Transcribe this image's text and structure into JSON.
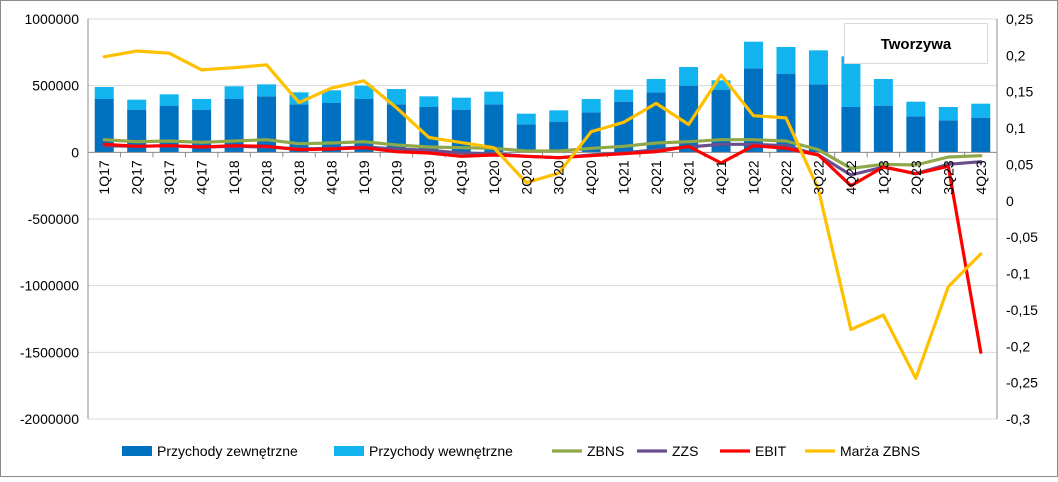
{
  "chart_data": {
    "type": "bar",
    "title": "Tworzywa",
    "categories": [
      "1Q17",
      "2Q17",
      "3Q17",
      "4Q17",
      "1Q18",
      "2Q18",
      "3Q18",
      "4Q18",
      "1Q19",
      "2Q19",
      "3Q19",
      "4Q19",
      "1Q20",
      "2Q20",
      "3Q20",
      "4Q20",
      "1Q21",
      "2Q21",
      "3Q21",
      "4Q21",
      "1Q22",
      "2Q22",
      "3Q22",
      "4Q22",
      "1Q23",
      "2Q23",
      "3Q23",
      "4Q23"
    ],
    "left_axis": {
      "ylim": [
        -2000000,
        1000000
      ],
      "ticks": [
        "1000000",
        "500000",
        "0",
        "-500000",
        "-1000000",
        "-1500000",
        "-2000000"
      ]
    },
    "right_axis": {
      "ylim": [
        -0.3,
        0.25
      ],
      "ticks": [
        "0,25",
        "0,2",
        "0,15",
        "0,1",
        "0,05",
        "0",
        "-0,05",
        "-0,1",
        "-0,15",
        "-0,2",
        "-0,25",
        "-0,3"
      ]
    },
    "series": [
      {
        "name": "Przychody zewnętrzne",
        "kind": "stacked-bar",
        "axis": "left",
        "color": "#0070C0",
        "values": [
          400000,
          320000,
          350000,
          320000,
          400000,
          420000,
          360000,
          370000,
          400000,
          360000,
          340000,
          320000,
          360000,
          210000,
          230000,
          300000,
          380000,
          450000,
          500000,
          470000,
          630000,
          590000,
          510000,
          340000,
          350000,
          270000,
          240000,
          260000
        ]
      },
      {
        "name": "Przychody wewnętrzne",
        "kind": "stacked-bar",
        "axis": "left",
        "color": "#12B4F0",
        "values": [
          90000,
          75000,
          85000,
          80000,
          95000,
          90000,
          90000,
          95000,
          100000,
          115000,
          80000,
          90000,
          95000,
          80000,
          85000,
          100000,
          90000,
          100000,
          140000,
          70000,
          200000,
          200000,
          255000,
          380000,
          200000,
          110000,
          100000,
          105000
        ]
      },
      {
        "name": "ZBNS",
        "kind": "line",
        "axis": "left",
        "color": "#8EA84A",
        "values": [
          95000,
          80000,
          85000,
          75000,
          85000,
          95000,
          65000,
          70000,
          80000,
          55000,
          40000,
          35000,
          30000,
          10000,
          10000,
          30000,
          45000,
          70000,
          80000,
          95000,
          95000,
          85000,
          20000,
          -120000,
          -90000,
          -95000,
          -35000,
          -25000
        ]
      },
      {
        "name": "ZZS",
        "kind": "line",
        "axis": "left",
        "color": "#6A4F8C",
        "values": [
          50000,
          45000,
          50000,
          40000,
          45000,
          40000,
          25000,
          30000,
          40000,
          25000,
          15000,
          -5000,
          -10000,
          -30000,
          -40000,
          -20000,
          -5000,
          20000,
          40000,
          60000,
          60000,
          50000,
          -20000,
          -170000,
          -110000,
          -160000,
          -90000,
          -70000
        ]
      },
      {
        "name": "EBIT",
        "kind": "line",
        "axis": "left",
        "color": "#FF0000",
        "values": [
          60000,
          45000,
          50000,
          40000,
          50000,
          45000,
          20000,
          25000,
          35000,
          5000,
          -5000,
          -30000,
          -20000,
          -30000,
          -40000,
          -25000,
          -10000,
          5000,
          45000,
          -80000,
          50000,
          30000,
          -20000,
          -250000,
          -110000,
          -160000,
          -105000,
          -1500000
        ]
      },
      {
        "name": "Marża ZBNS",
        "kind": "line",
        "axis": "right",
        "color": "#FFC000",
        "values": [
          0.198,
          0.206,
          0.203,
          0.18,
          0.183,
          0.187,
          0.135,
          0.155,
          0.165,
          0.128,
          0.087,
          0.08,
          0.073,
          0.025,
          0.038,
          0.095,
          0.108,
          0.134,
          0.105,
          0.173,
          0.117,
          0.114,
          0.016,
          -0.177,
          -0.157,
          -0.244,
          -0.118,
          -0.073
        ]
      }
    ],
    "legend": [
      "Przychody zewnętrzne",
      "Przychody wewnętrzne",
      "ZBNS",
      "ZZS",
      "EBIT",
      "Marża ZBNS"
    ],
    "legend_position": "bottom",
    "grid": true
  }
}
